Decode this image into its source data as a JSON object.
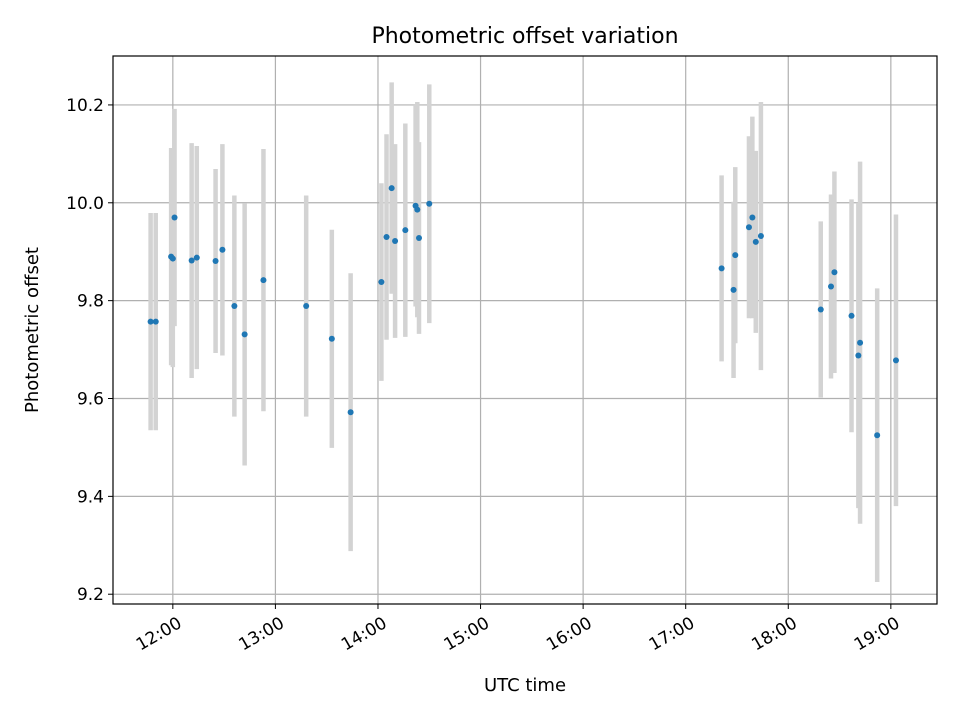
{
  "chart_data": {
    "type": "scatter",
    "title": "Photometric offset variation",
    "xlabel": "UTC time",
    "ylabel": "Photometric offset",
    "xlim": [
      "11:25",
      "19:27"
    ],
    "ylim": [
      9.18,
      10.3
    ],
    "xticks": [
      "12:00",
      "13:00",
      "14:00",
      "15:00",
      "16:00",
      "17:00",
      "18:00",
      "19:00"
    ],
    "yticks": [
      9.2,
      9.4,
      9.6,
      9.8,
      10.0,
      10.2
    ],
    "grid": true,
    "point_color": "#1f77b4",
    "errorbar_color": "#d3d3d3",
    "points": [
      {
        "x": "11:47",
        "y": 9.757,
        "err": 0.222
      },
      {
        "x": "11:50",
        "y": 9.757,
        "err": 0.222
      },
      {
        "x": "11:59",
        "y": 9.89,
        "err": 0.222
      },
      {
        "x": "12:00",
        "y": 9.886,
        "err": 0.222
      },
      {
        "x": "12:01",
        "y": 9.97,
        "err": 0.222
      },
      {
        "x": "12:11",
        "y": 9.882,
        "err": 0.24
      },
      {
        "x": "12:14",
        "y": 9.888,
        "err": 0.228
      },
      {
        "x": "12:25",
        "y": 9.881,
        "err": 0.188
      },
      {
        "x": "12:29",
        "y": 9.904,
        "err": 0.216
      },
      {
        "x": "12:36",
        "y": 9.789,
        "err": 0.226
      },
      {
        "x": "12:42",
        "y": 9.731,
        "err": 0.268
      },
      {
        "x": "12:53",
        "y": 9.842,
        "err": 0.268
      },
      {
        "x": "13:18",
        "y": 9.789,
        "err": 0.226
      },
      {
        "x": "13:33",
        "y": 9.722,
        "err": 0.223
      },
      {
        "x": "13:44",
        "y": 9.572,
        "err": 0.284
      },
      {
        "x": "14:02",
        "y": 9.838,
        "err": 0.202
      },
      {
        "x": "14:05",
        "y": 9.93,
        "err": 0.21
      },
      {
        "x": "14:08",
        "y": 10.03,
        "err": 0.216
      },
      {
        "x": "14:10",
        "y": 9.922,
        "err": 0.198
      },
      {
        "x": "14:16",
        "y": 9.944,
        "err": 0.218
      },
      {
        "x": "14:22",
        "y": 9.994,
        "err": 0.206
      },
      {
        "x": "14:23",
        "y": 9.986,
        "err": 0.22
      },
      {
        "x": "14:24",
        "y": 9.928,
        "err": 0.196
      },
      {
        "x": "14:30",
        "y": 9.998,
        "err": 0.244
      },
      {
        "x": "17:21",
        "y": 9.866,
        "err": 0.19
      },
      {
        "x": "17:28",
        "y": 9.822,
        "err": 0.18
      },
      {
        "x": "17:29",
        "y": 9.893,
        "err": 0.18
      },
      {
        "x": "17:37",
        "y": 9.95,
        "err": 0.186
      },
      {
        "x": "17:39",
        "y": 9.97,
        "err": 0.206
      },
      {
        "x": "17:41",
        "y": 9.92,
        "err": 0.186
      },
      {
        "x": "17:44",
        "y": 9.932,
        "err": 0.274
      },
      {
        "x": "18:19",
        "y": 9.782,
        "err": 0.18
      },
      {
        "x": "18:25",
        "y": 9.829,
        "err": 0.188
      },
      {
        "x": "18:27",
        "y": 9.858,
        "err": 0.206
      },
      {
        "x": "18:37",
        "y": 9.769,
        "err": 0.238
      },
      {
        "x": "18:41",
        "y": 9.688,
        "err": 0.312
      },
      {
        "x": "18:42",
        "y": 9.714,
        "err": 0.37
      },
      {
        "x": "18:52",
        "y": 9.525,
        "err": 0.3
      },
      {
        "x": "19:03",
        "y": 9.678,
        "err": 0.298
      }
    ]
  }
}
